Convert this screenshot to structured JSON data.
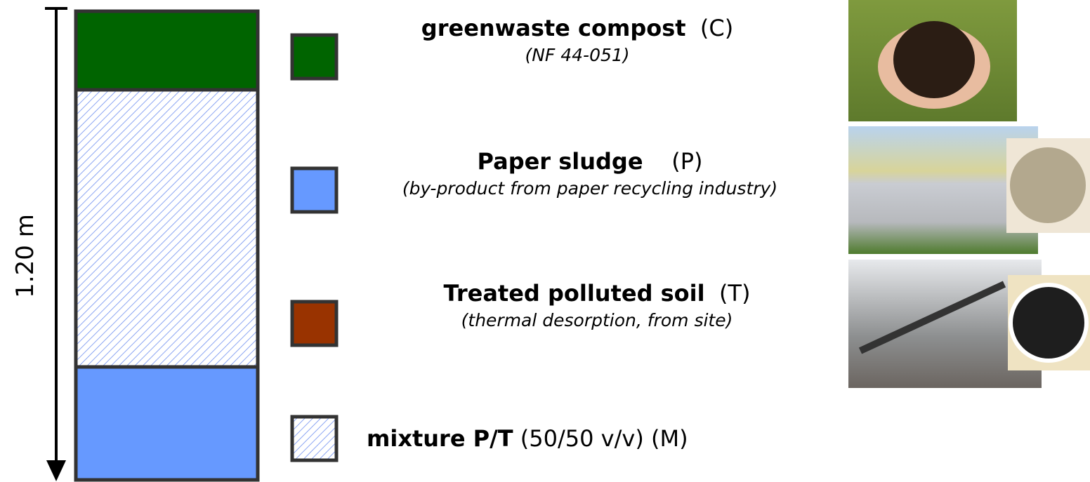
{
  "dimension": "1.20 m",
  "legend": [
    {
      "name": "greenwaste compost",
      "code": "(C)",
      "note": "(NF 44-051)"
    },
    {
      "name": "Paper sludge",
      "code": "(P)",
      "note": "(by-product from paper recycling industry)"
    },
    {
      "name": "Treated polluted soil",
      "code": "(T)",
      "note": "(thermal desorption, from site)"
    },
    {
      "name": "mixture P/T",
      "detail": "(50/50 v/v)",
      "code": "(M)"
    }
  ]
}
